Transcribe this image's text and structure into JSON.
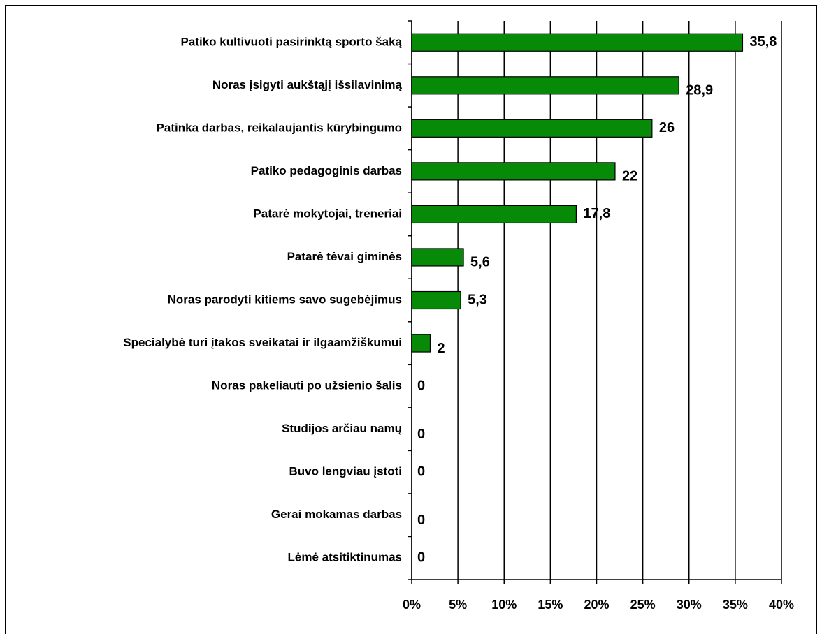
{
  "chart_data": {
    "type": "hbar",
    "categories": [
      "Patiko kultivuoti pasirinktą sporto šaką",
      "Noras įsigyti aukštąjį išsilavinimą",
      "Patinka darbas, reikalaujantis kūrybingumo",
      "Patiko pedagoginis darbas",
      "Patarė mokytojai, treneriai",
      "Patarė tėvai giminės",
      "Noras parodyti kitiems savo sugebėjimus",
      "Specialybė turi įtakos sveikatai ir ilgaamžiškumui",
      "Noras pakeliauti po užsienio šalis",
      "Studijos arčiau namų",
      "Buvo lengviau įstoti",
      "Gerai mokamas darbas",
      "Lėmė atsitiktinumas"
    ],
    "values": [
      35.8,
      28.9,
      26,
      22,
      17.8,
      5.6,
      5.3,
      2,
      0,
      0,
      0,
      0,
      0
    ],
    "value_labels": [
      "35,8",
      "28,9",
      "26",
      "22",
      "17,8",
      "5,6",
      "5,3",
      "2",
      "0",
      "0",
      "0",
      "0",
      "0"
    ],
    "color": "#078a07",
    "xlim": [
      0,
      40
    ],
    "xticks": [
      {
        "value": 0,
        "label": "0%"
      },
      {
        "value": 5,
        "label": "5%"
      },
      {
        "value": 10,
        "label": "10%"
      },
      {
        "value": 15,
        "label": "15%"
      },
      {
        "value": 20,
        "label": "20%"
      },
      {
        "value": 25,
        "label": "25%"
      },
      {
        "value": 30,
        "label": "30%"
      },
      {
        "value": 35,
        "label": "35%"
      },
      {
        "value": 40,
        "label": "40%"
      }
    ],
    "grid": true
  }
}
